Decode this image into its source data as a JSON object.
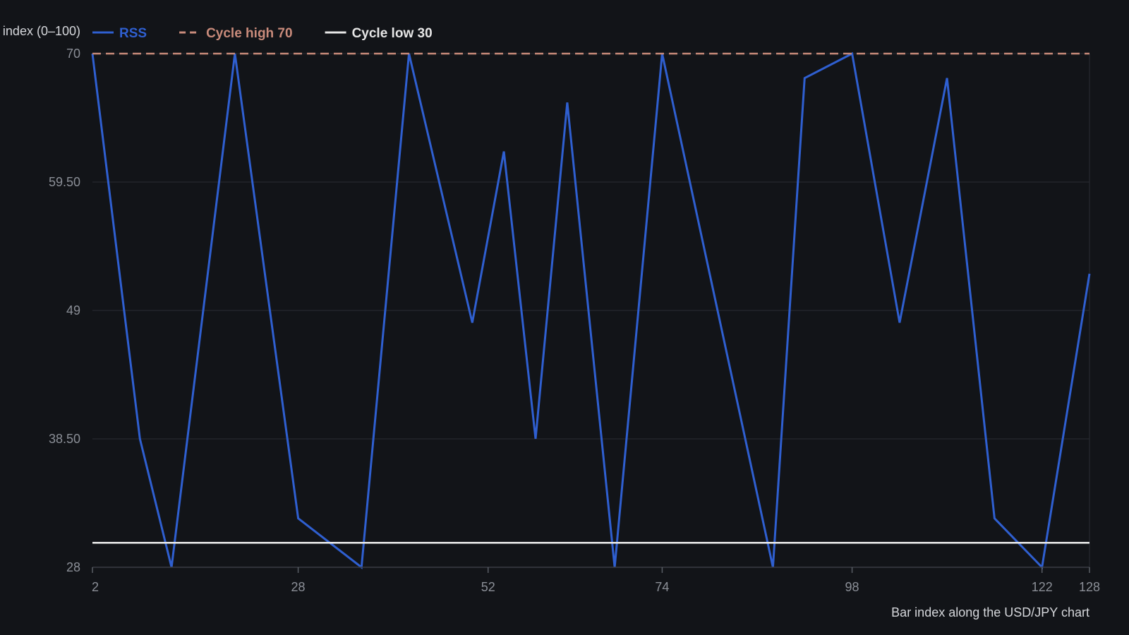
{
  "chart_data": {
    "type": "line",
    "ylabel": "index (0–100)",
    "xlabel": "Bar index along the USD/JPY chart",
    "xlim": [
      2,
      128
    ],
    "ylim": [
      28,
      70
    ],
    "x_ticks": [
      2,
      28,
      52,
      74,
      98,
      122,
      128
    ],
    "y_ticks": [
      "28",
      "38.50",
      "49",
      "59.50",
      "70"
    ],
    "grid": true,
    "legend_position": "top-left",
    "series": [
      {
        "name": "RSS",
        "color": "#2f5fd0",
        "style": "solid",
        "x": [
          2,
          8,
          12,
          20,
          28,
          36,
          42,
          50,
          54,
          58,
          62,
          68,
          74,
          80,
          88,
          92,
          98,
          104,
          110,
          116,
          122,
          128
        ],
        "y": [
          70,
          38.5,
          28,
          70,
          32,
          28,
          70,
          48,
          62,
          38.5,
          66,
          28,
          70,
          52,
          28,
          68,
          70,
          48,
          68,
          32,
          28,
          52
        ]
      },
      {
        "name": "Cycle high 70",
        "color": "#c98b7b",
        "style": "dashed",
        "x": [
          2,
          128
        ],
        "y": [
          70,
          70
        ]
      },
      {
        "name": "Cycle low 30",
        "color": "#e6e6e6",
        "style": "solid",
        "x": [
          2,
          128
        ],
        "y": [
          30,
          30
        ]
      }
    ],
    "colors": {
      "background": "#121418",
      "grid": "#2a2d33",
      "tick_text": "#8b8f97",
      "axis_title": "#d5d7db"
    }
  }
}
